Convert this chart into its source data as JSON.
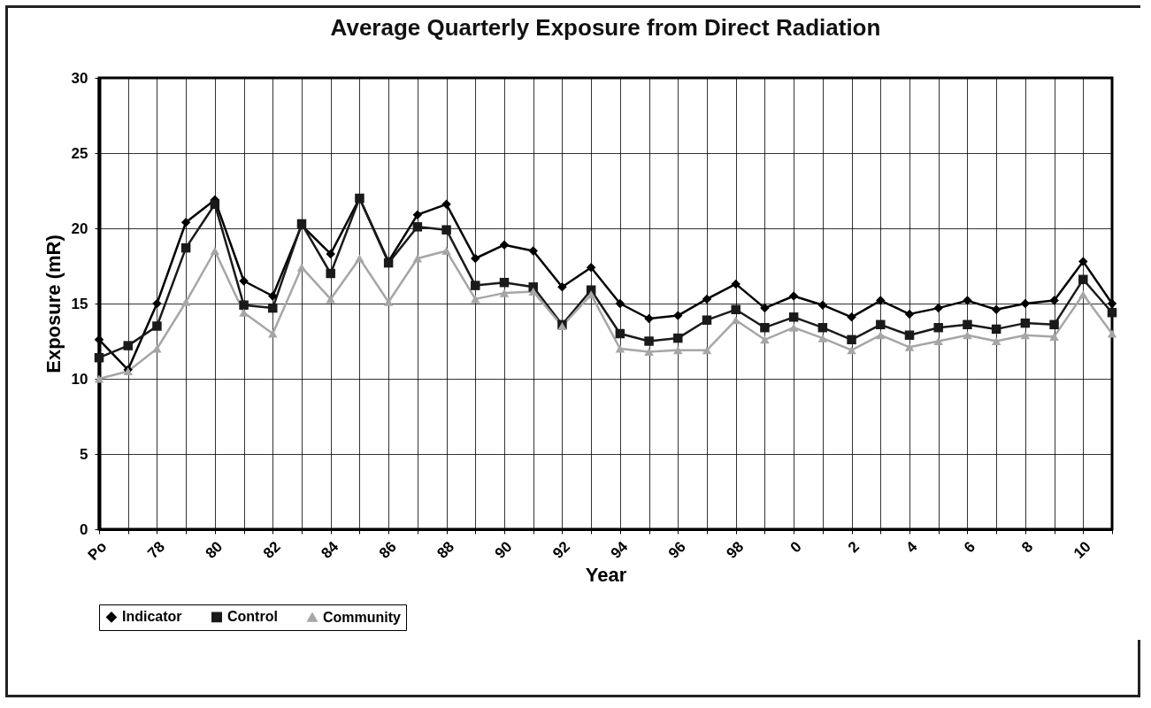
{
  "chart_data": {
    "type": "line",
    "title": "Average Quarterly Exposure from Direct Radiation",
    "xlabel": "Year",
    "ylabel": "Exposure (mR)",
    "categories": [
      "Po",
      null,
      "78",
      null,
      "80",
      null,
      "82",
      null,
      "84",
      null,
      "86",
      null,
      "88",
      null,
      "90",
      null,
      "92",
      null,
      "94",
      null,
      "96",
      null,
      "98",
      null,
      "0",
      null,
      "2",
      null,
      "4",
      null,
      "6",
      null,
      "8",
      null,
      "10",
      null
    ],
    "series": [
      {
        "name": "Indicator",
        "color": "#000000",
        "marker": "diamond",
        "values": [
          12.6,
          10.6,
          15.0,
          20.4,
          21.9,
          16.5,
          15.5,
          20.2,
          18.3,
          22.0,
          17.8,
          20.9,
          21.6,
          18.0,
          18.9,
          18.5,
          16.1,
          17.4,
          15.0,
          14.0,
          14.2,
          15.3,
          16.3,
          14.7,
          15.5,
          14.9,
          14.1,
          15.2,
          14.3,
          14.7,
          15.2,
          14.6,
          15.0,
          15.2,
          17.8,
          15.0
        ]
      },
      {
        "name": "Control",
        "color": "#1a1a1a",
        "marker": "square",
        "values": [
          11.4,
          12.2,
          13.5,
          18.7,
          21.6,
          14.9,
          14.7,
          20.3,
          17.0,
          22.0,
          17.7,
          20.1,
          19.9,
          16.2,
          16.4,
          16.1,
          13.6,
          15.9,
          13.0,
          12.5,
          12.7,
          13.9,
          14.6,
          13.4,
          14.1,
          13.4,
          12.6,
          13.6,
          12.9,
          13.4,
          13.6,
          13.3,
          13.7,
          13.6,
          16.6,
          14.4
        ]
      },
      {
        "name": "Community",
        "color": "#a6a6a6",
        "marker": "triangle",
        "values": [
          10.0,
          10.5,
          12.0,
          15.1,
          18.5,
          14.4,
          13.0,
          17.4,
          15.3,
          18.0,
          15.1,
          18.0,
          18.5,
          15.3,
          15.7,
          15.8,
          13.5,
          15.6,
          12.0,
          11.8,
          11.9,
          11.9,
          13.9,
          12.6,
          13.4,
          12.7,
          11.9,
          12.9,
          12.1,
          12.5,
          12.9,
          12.5,
          12.9,
          12.8,
          15.6,
          13.0
        ]
      }
    ],
    "ylim": [
      0,
      30
    ],
    "yticks": [
      0,
      5,
      10,
      15,
      20,
      25,
      30
    ],
    "grid": true,
    "legend": "bottom",
    "line_style": "solid"
  }
}
